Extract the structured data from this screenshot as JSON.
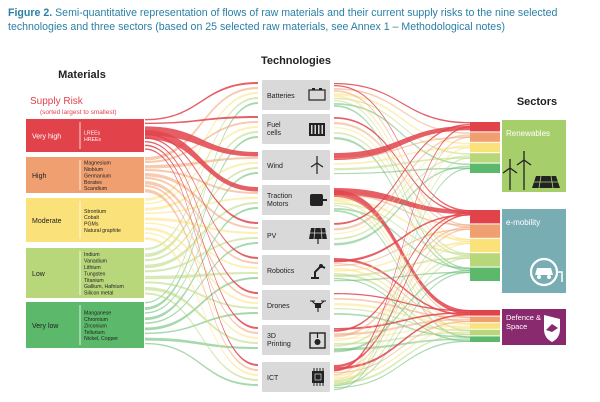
{
  "caption": {
    "label": "Figure 2.",
    "text": "Semi-quantitative representation of flows of raw materials and their current supply risks to the nine selected technologies and three sectors (based on 25 selected raw materials, see Annex 1 – Methodological notes)"
  },
  "headers": {
    "materials": "Materials",
    "technologies": "Technologies",
    "sectors": "Sectors"
  },
  "supply_risk": {
    "title": "Supply Risk",
    "subtitle": "(sorted largest to smallest)"
  },
  "risk_groups": [
    {
      "label": "Very high",
      "materials": [
        "LREEs",
        "HREEs"
      ],
      "color": "#e2434b"
    },
    {
      "label": "High",
      "materials": [
        "Magnesium",
        "Niobium",
        "Germanium",
        "Borates",
        "Scandium"
      ],
      "color": "#f0a070"
    },
    {
      "label": "Moderate",
      "materials": [
        "Strontium",
        "Cobalt",
        "PGMs",
        "Natural graphite"
      ],
      "color": "#fbe17a"
    },
    {
      "label": "Low",
      "materials": [
        "Indium",
        "Vanadium",
        "Lithium",
        "Tungsten",
        "Titanium",
        "Gallium, Hafnium",
        "Silicon metal"
      ],
      "color": "#b8d77a"
    },
    {
      "label": "Very low",
      "materials": [
        "Manganese",
        "Chromium",
        "Zirconium",
        "Tellurium",
        "Nickel, Copper"
      ],
      "color": "#5cb86a"
    }
  ],
  "technologies": [
    {
      "label": "Batteries",
      "icon": "battery-icon"
    },
    {
      "label": "Fuel cells",
      "icon": "fuel-cell-icon"
    },
    {
      "label": "Wind",
      "icon": "wind-turbine-icon"
    },
    {
      "label": "Traction Motors",
      "icon": "motor-icon"
    },
    {
      "label": "PV",
      "icon": "solar-panel-icon"
    },
    {
      "label": "Robotics",
      "icon": "robot-arm-icon"
    },
    {
      "label": "Drones",
      "icon": "drone-icon"
    },
    {
      "label": "3D Printing",
      "icon": "3d-printer-icon"
    },
    {
      "label": "ICT",
      "icon": "chip-icon"
    }
  ],
  "sectors": [
    {
      "label": "Renewables",
      "color": "#a6cf6c",
      "icon": "wind-solar-icon"
    },
    {
      "label": "e-mobility",
      "color": "#79adb4",
      "icon": "electric-car-icon"
    },
    {
      "label": "Defence & Space",
      "color": "#8a2a6e",
      "icon": "eagle-shield-icon"
    }
  ],
  "colors": {
    "very_high": "#e2434b",
    "high": "#f0a070",
    "moderate": "#fbe17a",
    "low": "#b8d77a",
    "very_low": "#5cb86a",
    "caption": "#2b7fa5",
    "risk_title": "#e2434b"
  }
}
